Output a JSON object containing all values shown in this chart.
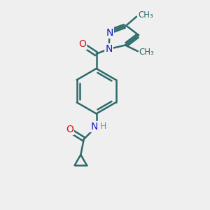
{
  "background_color": "#efefef",
  "bond_color": "#2d6b6b",
  "bond_width": 1.8,
  "atom_colors": {
    "N": "#1a1acc",
    "O": "#cc1a1a",
    "C": "#2d6b6b",
    "H": "#6a9a9a"
  },
  "font_size_atom": 10,
  "font_size_methyl": 8.5,
  "xlim": [
    0,
    10
  ],
  "ylim": [
    0,
    12
  ]
}
